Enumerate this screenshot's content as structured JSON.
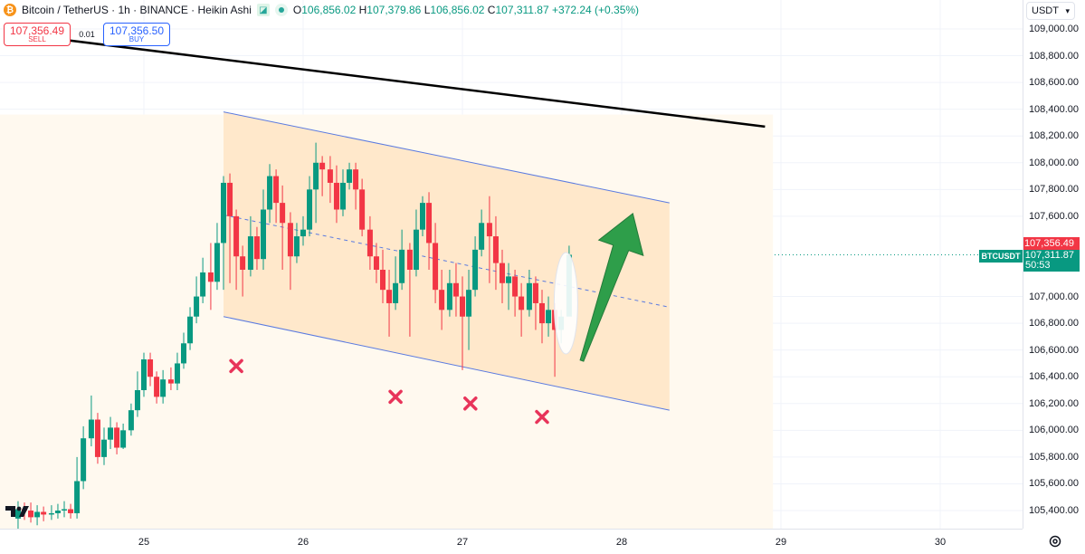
{
  "legend": {
    "symbol": "Bitcoin / TetherUS · 1h · BINANCE · Heikin Ashi",
    "o_key": "O",
    "o_val": "106,856.02",
    "h_key": "H",
    "h_val": "107,379.86",
    "l_key": "L",
    "l_val": "106,856.02",
    "c_key": "C",
    "c_val": "107,311.87",
    "change": "+372.24 (+0.35%)"
  },
  "trade": {
    "sell_price": "107,356.49",
    "sell_label": "SELL",
    "spread": "0.01",
    "buy_price": "107,356.50",
    "buy_label": "BUY"
  },
  "price_axis": {
    "currency": "USDT",
    "labels": [
      "109,000.00",
      "108,800.00",
      "108,600.00",
      "108,400.00",
      "108,200.00",
      "108,000.00",
      "107,800.00",
      "107,600.00",
      "107,000.00",
      "106,800.00",
      "106,600.00",
      "106,400.00",
      "106,200.00",
      "106,000.00",
      "105,800.00",
      "105,600.00",
      "105,400.00"
    ],
    "ask_tag": "107,356.49",
    "last_tag": "107,311.87",
    "countdown": "50:53",
    "symbol_tag": "BTCUSDT"
  },
  "time_axis": {
    "labels": [
      "25",
      "26",
      "27",
      "28",
      "29",
      "30"
    ]
  },
  "chart_data": {
    "type": "candlestick",
    "style": "Heikin Ashi",
    "interval": "1h",
    "y_range": [
      105300,
      109100
    ],
    "x_range": [
      24.25,
      30.5
    ],
    "colors": {
      "up": "#089981",
      "down": "#f23645",
      "channel": "#ffe2bf",
      "channel_line": "#5b7be0",
      "resistance": "#000000",
      "arrow": "#2e9e4a",
      "marker": "#e8345a"
    },
    "resistance_line": [
      [
        24.22,
        108960
      ],
      [
        28.9,
        108270
      ]
    ],
    "channel": {
      "upper": [
        [
          25.5,
          108380
        ],
        [
          28.3,
          107700
        ]
      ],
      "lower": [
        [
          25.5,
          106850
        ],
        [
          28.3,
          106150
        ]
      ],
      "mid": [
        [
          25.5,
          107610
        ],
        [
          28.3,
          106920
        ]
      ]
    },
    "markers": [
      [
        25.58,
        106480
      ],
      [
        26.58,
        106250
      ],
      [
        27.05,
        106200
      ],
      [
        27.5,
        106100
      ]
    ],
    "arrow": {
      "from": [
        27.75,
        106520
      ],
      "to": [
        28.07,
        107620
      ]
    },
    "highlight": {
      "x": 27.65,
      "y": 106950
    },
    "candles": [
      [
        24.21,
        105340,
        105410,
        105250,
        105470
      ],
      [
        24.25,
        105410,
        105400,
        105330,
        105460
      ],
      [
        24.29,
        105400,
        105350,
        105310,
        105460
      ],
      [
        24.33,
        105350,
        105390,
        105290,
        105440
      ],
      [
        24.37,
        105390,
        105370,
        105320,
        105430
      ],
      [
        24.42,
        105370,
        105380,
        105330,
        105440
      ],
      [
        24.46,
        105380,
        105400,
        105340,
        105450
      ],
      [
        24.5,
        105400,
        105410,
        105350,
        105470
      ],
      [
        24.54,
        105410,
        105380,
        105340,
        105450
      ],
      [
        24.58,
        105380,
        105620,
        105340,
        105800
      ],
      [
        24.62,
        105620,
        105940,
        105560,
        106030
      ],
      [
        24.67,
        105940,
        106080,
        105880,
        106260
      ],
      [
        24.71,
        106080,
        105800,
        105750,
        106130
      ],
      [
        24.75,
        105800,
        105930,
        105740,
        106020
      ],
      [
        24.79,
        105930,
        106020,
        105860,
        106100
      ],
      [
        24.83,
        106020,
        105870,
        105820,
        106060
      ],
      [
        24.87,
        105870,
        106000,
        105860,
        106050
      ],
      [
        24.92,
        106000,
        106150,
        105960,
        106200
      ],
      [
        24.96,
        106150,
        106300,
        106100,
        106440
      ],
      [
        25,
        106300,
        106530,
        106250,
        106580
      ],
      [
        25.04,
        106530,
        106400,
        106330,
        106580
      ],
      [
        25.08,
        106400,
        106250,
        106200,
        106440
      ],
      [
        25.12,
        106250,
        106380,
        106200,
        106450
      ],
      [
        25.17,
        106380,
        106350,
        106300,
        106470
      ],
      [
        25.21,
        106350,
        106500,
        106300,
        106580
      ],
      [
        25.25,
        106500,
        106650,
        106460,
        106730
      ],
      [
        25.29,
        106650,
        106850,
        106600,
        106920
      ],
      [
        25.33,
        106850,
        107000,
        106800,
        107150
      ],
      [
        25.37,
        107000,
        107180,
        106950,
        107290
      ],
      [
        25.42,
        107180,
        107110,
        106900,
        107400
      ],
      [
        25.46,
        107110,
        107400,
        107050,
        107550
      ],
      [
        25.5,
        107400,
        107850,
        107050,
        107900
      ],
      [
        25.54,
        107850,
        107600,
        107100,
        107920
      ],
      [
        25.58,
        107600,
        107300,
        107050,
        107650
      ],
      [
        25.62,
        107300,
        107200,
        107000,
        107380
      ],
      [
        25.67,
        107200,
        107450,
        107150,
        107600
      ],
      [
        25.71,
        107450,
        107280,
        107200,
        107520
      ],
      [
        25.75,
        107280,
        107650,
        107200,
        107800
      ],
      [
        25.79,
        107650,
        107900,
        107550,
        107990
      ],
      [
        25.83,
        107900,
        107700,
        107550,
        107950
      ],
      [
        25.87,
        107700,
        107550,
        107200,
        107830
      ],
      [
        25.92,
        107550,
        107300,
        107050,
        107630
      ],
      [
        25.96,
        107300,
        107450,
        107250,
        107550
      ],
      [
        26,
        107450,
        107500,
        107380,
        107600
      ],
      [
        26.04,
        107500,
        107800,
        107450,
        107900
      ],
      [
        26.08,
        107800,
        108000,
        107550,
        108150
      ],
      [
        26.12,
        108000,
        107950,
        107750,
        108050
      ],
      [
        26.17,
        107950,
        107850,
        107700,
        108050
      ],
      [
        26.21,
        107850,
        107650,
        107550,
        107980
      ],
      [
        26.25,
        107650,
        107850,
        107600,
        107950
      ],
      [
        26.29,
        107850,
        107950,
        107800,
        108000
      ],
      [
        26.33,
        107950,
        107800,
        107650,
        108000
      ],
      [
        26.37,
        107800,
        107500,
        107450,
        107880
      ],
      [
        26.42,
        107500,
        107300,
        107200,
        107600
      ],
      [
        26.46,
        107300,
        107200,
        107100,
        107400
      ],
      [
        26.5,
        107200,
        107050,
        106950,
        107350
      ],
      [
        26.54,
        107050,
        106950,
        106700,
        107200
      ],
      [
        26.58,
        106950,
        107100,
        106900,
        107300
      ],
      [
        26.62,
        107100,
        107350,
        107050,
        107500
      ],
      [
        26.67,
        107350,
        107200,
        106700,
        107400
      ],
      [
        26.71,
        107200,
        107500,
        107150,
        107650
      ],
      [
        26.75,
        107500,
        107700,
        107450,
        107750
      ],
      [
        26.79,
        107700,
        107400,
        107200,
        107780
      ],
      [
        26.83,
        107400,
        107050,
        106950,
        107550
      ],
      [
        26.87,
        107050,
        106900,
        106750,
        107200
      ],
      [
        26.92,
        106900,
        107100,
        106850,
        107200
      ],
      [
        26.96,
        107100,
        107000,
        106850,
        107250
      ],
      [
        27,
        107000,
        106850,
        106450,
        107150
      ],
      [
        27.04,
        106850,
        107050,
        106600,
        107200
      ],
      [
        27.08,
        107050,
        107350,
        107000,
        107450
      ],
      [
        27.12,
        107350,
        107550,
        107300,
        107650
      ],
      [
        27.17,
        107550,
        107450,
        107100,
        107750
      ],
      [
        27.21,
        107450,
        107250,
        107050,
        107600
      ],
      [
        27.25,
        107250,
        107100,
        106950,
        107350
      ],
      [
        27.29,
        107100,
        107150,
        106900,
        107250
      ],
      [
        27.33,
        107150,
        107000,
        106850,
        107200
      ],
      [
        27.37,
        107000,
        106900,
        106700,
        107100
      ],
      [
        27.42,
        106900,
        107100,
        106850,
        107200
      ],
      [
        27.46,
        107100,
        106950,
        106750,
        107150
      ],
      [
        27.5,
        106950,
        106800,
        106650,
        107050
      ],
      [
        27.54,
        106800,
        106900,
        106700,
        107000
      ],
      [
        27.58,
        106900,
        106750,
        106400,
        106950
      ],
      [
        27.62,
        106750,
        106850,
        106650,
        106900
      ],
      [
        27.67,
        106850,
        107312,
        106856,
        107380
      ]
    ]
  }
}
